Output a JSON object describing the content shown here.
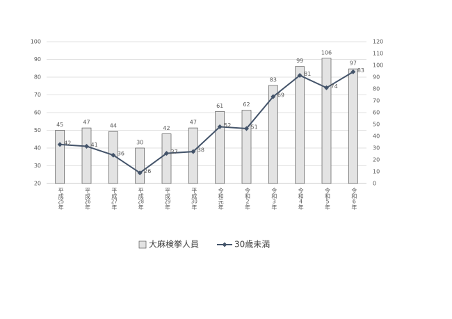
{
  "chart_data": {
    "type": "bar-line",
    "categories": [
      "平成25年",
      "平成26年",
      "平成27年",
      "平成28年",
      "平成29年",
      "平成30年",
      "令和元年",
      "令和2年",
      "令和3年",
      "令和4年",
      "令和5年",
      "令和6年"
    ],
    "series": [
      {
        "name": "大麻検挙人員",
        "type": "bar",
        "axis": "y2",
        "color": "#e3e3e3",
        "values": [
          45,
          47,
          44,
          30,
          42,
          47,
          61,
          62,
          83,
          99,
          106,
          97
        ]
      },
      {
        "name": "30歳未満",
        "type": "line",
        "axis": "y",
        "color": "#44546a",
        "values": [
          42,
          41,
          36,
          26,
          37,
          38,
          52,
          51,
          69,
          81,
          74,
          83
        ]
      }
    ],
    "ylim": [
      20,
      100
    ],
    "yticks": [
      20,
      30,
      40,
      50,
      60,
      70,
      80,
      90,
      100
    ],
    "y2lim": [
      0,
      120
    ],
    "y2ticks": [
      0,
      10,
      20,
      30,
      40,
      50,
      60,
      70,
      80,
      90,
      100,
      110,
      120
    ],
    "grid": true,
    "legend": "bottom"
  }
}
